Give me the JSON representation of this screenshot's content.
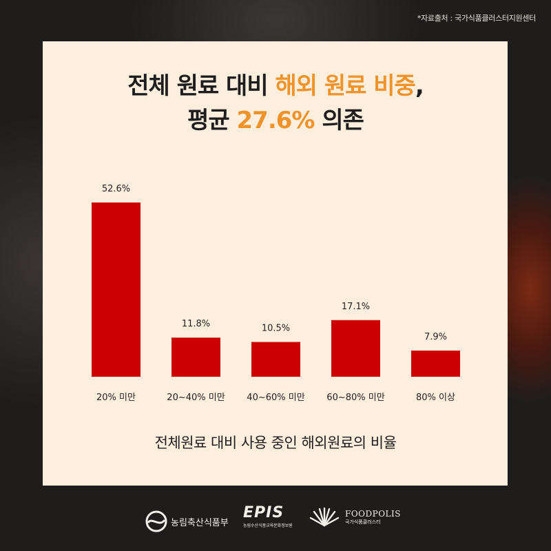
{
  "source_note": "*자료출처 : 국가식품클러스터지원센터",
  "headline": {
    "line1_a": "전체 원료 대비 ",
    "line1_highlight": "해외 원료 비중",
    "line1_b": ",",
    "line2_a": "평균 ",
    "line2_highlight": "27.6%",
    "line2_b": " 의존"
  },
  "chart_data": {
    "type": "bar",
    "title": "전체원료 대비 사용 중인 해외원료의 비율",
    "categories": [
      "20% 미만",
      "20~40% 미만",
      "40~60% 미만",
      "60~80% 미만",
      "80% 이상"
    ],
    "values": [
      52.6,
      11.8,
      10.5,
      17.1,
      7.9
    ],
    "data_labels": [
      "52.6%",
      "11.8%",
      "10.5%",
      "17.1%",
      "7.9%"
    ],
    "ylim": [
      0,
      52.6
    ],
    "grid": false,
    "bar_color": "#cc0000"
  },
  "colors": {
    "card_bg": "#fdeedd",
    "highlight": "#f2932a",
    "text": "#1e1e1e",
    "bar": "#cc0000"
  },
  "footer": {
    "logo1_label": "농림축산식품부",
    "logo2_label": "EPIS",
    "logo2_sub": "농림수산식품교육문화정보원",
    "logo3_label": "FOODPOLIS",
    "logo3_sub": "국가식품클러스터"
  }
}
